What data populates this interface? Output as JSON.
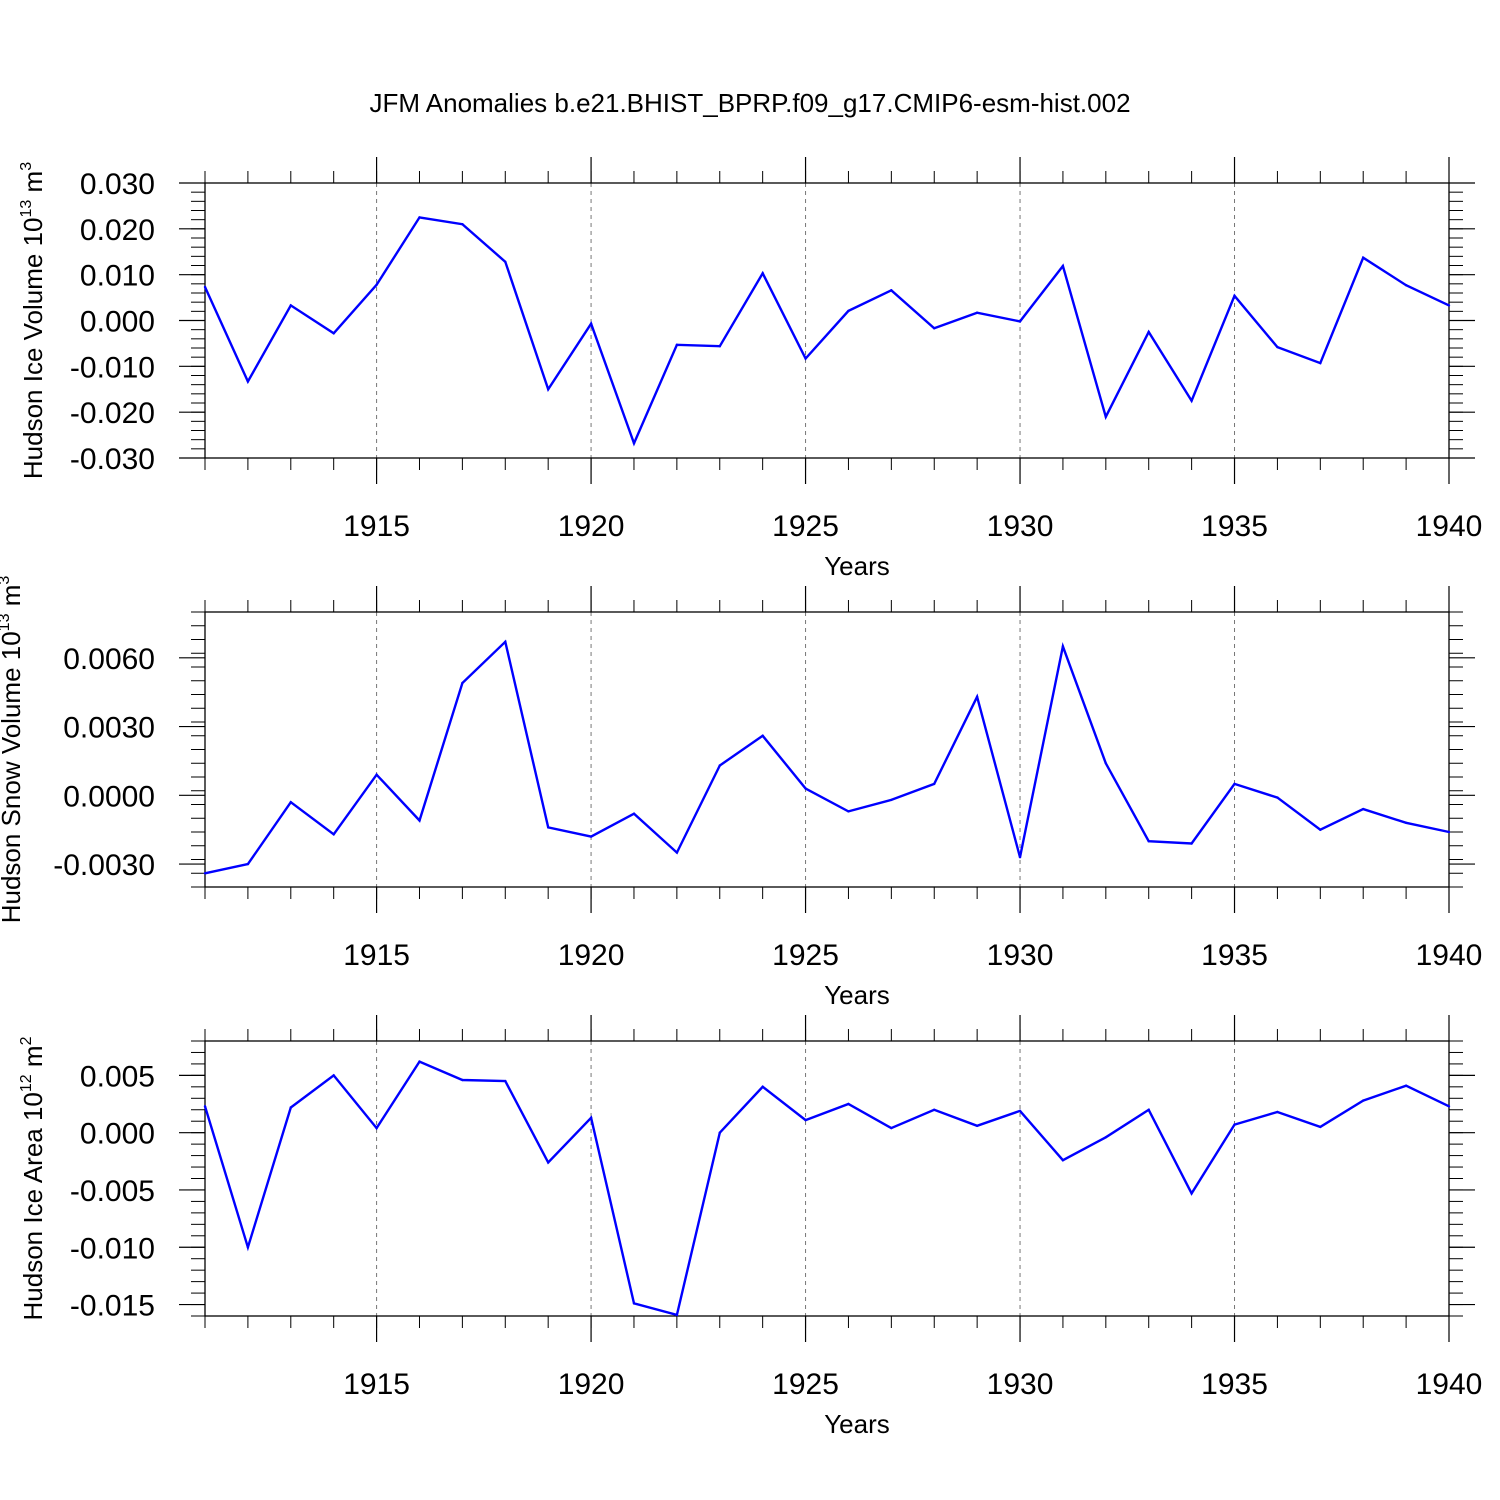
{
  "title": "JFM Anomalies b.e21.BHIST_BPRP.f09_g17.CMIP6-esm-hist.002",
  "colors": {
    "series": "#0000ff",
    "axis": "#000000",
    "grid": "#777777"
  },
  "chart_data": [
    {
      "type": "line",
      "title": "",
      "xlabel": "Years",
      "ylabel": "Hudson Ice Volume",
      "ylabel_unit_base": "10",
      "ylabel_unit_exp": "13",
      "ylabel_unit_suffix": "m",
      "ylabel_unit_suffix_exp": "3",
      "xlim": [
        1911,
        1940
      ],
      "ylim": [
        -0.03,
        0.03
      ],
      "x_ticks": [
        1915,
        1920,
        1925,
        1930,
        1935,
        1940
      ],
      "y_ticks": [
        "0.030",
        "0.020",
        "0.010",
        "0.000",
        "-0.010",
        "-0.020",
        "-0.030"
      ],
      "y_tick_values": [
        0.03,
        0.02,
        0.01,
        0.0,
        -0.01,
        -0.02,
        -0.03
      ],
      "grid": "vertical dashed at major x ticks",
      "x": [
        1911,
        1912,
        1913,
        1914,
        1915,
        1916,
        1917,
        1918,
        1919,
        1920,
        1921,
        1922,
        1923,
        1924,
        1925,
        1926,
        1927,
        1928,
        1929,
        1930,
        1931,
        1932,
        1933,
        1934,
        1935,
        1936,
        1937,
        1938,
        1939,
        1940
      ],
      "values": [
        0.0073,
        -0.0133,
        0.0033,
        -0.0028,
        0.0078,
        0.0225,
        0.021,
        0.0128,
        -0.015,
        -0.0007,
        -0.0268,
        -0.0053,
        -0.0056,
        0.0103,
        -0.0083,
        0.0021,
        0.0066,
        -0.0017,
        0.0017,
        -0.0002,
        0.0119,
        -0.021,
        -0.0025,
        -0.0175,
        0.0054,
        -0.0058,
        -0.0093,
        0.0137,
        0.0077,
        0.0033
      ]
    },
    {
      "type": "line",
      "title": "",
      "xlabel": "Years",
      "ylabel": "Hudson Snow Volume",
      "ylabel_unit_base": "10",
      "ylabel_unit_exp": "13",
      "ylabel_unit_suffix": "m",
      "ylabel_unit_suffix_exp": "3",
      "xlim": [
        1911,
        1940
      ],
      "ylim": [
        -0.004,
        0.008
      ],
      "x_ticks": [
        1915,
        1920,
        1925,
        1930,
        1935,
        1940
      ],
      "y_ticks": [
        "0.0060",
        "0.0030",
        "0.0000",
        "-0.0030"
      ],
      "y_tick_values": [
        0.006,
        0.003,
        0.0,
        -0.003
      ],
      "grid": "vertical dashed at major x ticks",
      "x": [
        1911,
        1912,
        1913,
        1914,
        1915,
        1916,
        1917,
        1918,
        1919,
        1920,
        1921,
        1922,
        1923,
        1924,
        1925,
        1926,
        1927,
        1928,
        1929,
        1930,
        1931,
        1932,
        1933,
        1934,
        1935,
        1936,
        1937,
        1938,
        1939,
        1940
      ],
      "values": [
        -0.0034,
        -0.003,
        -0.0003,
        -0.0017,
        0.0009,
        -0.0011,
        0.0049,
        0.0067,
        -0.0014,
        -0.0018,
        -0.0008,
        -0.0025,
        0.0013,
        0.0026,
        0.0003,
        -0.0007,
        -0.0002,
        0.0005,
        0.0043,
        -0.0027,
        0.0065,
        0.0014,
        -0.002,
        -0.0021,
        0.0005,
        -0.0001,
        -0.0015,
        -0.0006,
        -0.0012,
        -0.0016
      ]
    },
    {
      "type": "line",
      "title": "",
      "xlabel": "Years",
      "ylabel": "Hudson Ice Area",
      "ylabel_unit_base": "10",
      "ylabel_unit_exp": "12",
      "ylabel_unit_suffix": "m",
      "ylabel_unit_suffix_exp": "2",
      "xlim": [
        1911,
        1940
      ],
      "ylim": [
        -0.016,
        0.008
      ],
      "x_ticks": [
        1915,
        1920,
        1925,
        1930,
        1935,
        1940
      ],
      "y_ticks": [
        "0.005",
        "0.000",
        "-0.005",
        "-0.010",
        "-0.015"
      ],
      "y_tick_values": [
        0.005,
        0.0,
        -0.005,
        -0.01,
        -0.015
      ],
      "grid": "vertical dashed at major x ticks",
      "x": [
        1911,
        1912,
        1913,
        1914,
        1915,
        1916,
        1917,
        1918,
        1919,
        1920,
        1921,
        1922,
        1923,
        1924,
        1925,
        1926,
        1927,
        1928,
        1929,
        1930,
        1931,
        1932,
        1933,
        1934,
        1935,
        1936,
        1937,
        1938,
        1939,
        1940
      ],
      "values": [
        0.0023,
        -0.01,
        0.0022,
        0.005,
        0.0004,
        0.0062,
        0.0046,
        0.0045,
        -0.0026,
        0.0013,
        -0.0149,
        -0.0159,
        0.0,
        0.004,
        0.0011,
        0.0025,
        0.0004,
        0.002,
        0.0006,
        0.0019,
        -0.0024,
        -0.0004,
        0.002,
        -0.0053,
        0.0007,
        0.0018,
        0.0005,
        0.0028,
        0.0041,
        0.0023
      ]
    }
  ]
}
